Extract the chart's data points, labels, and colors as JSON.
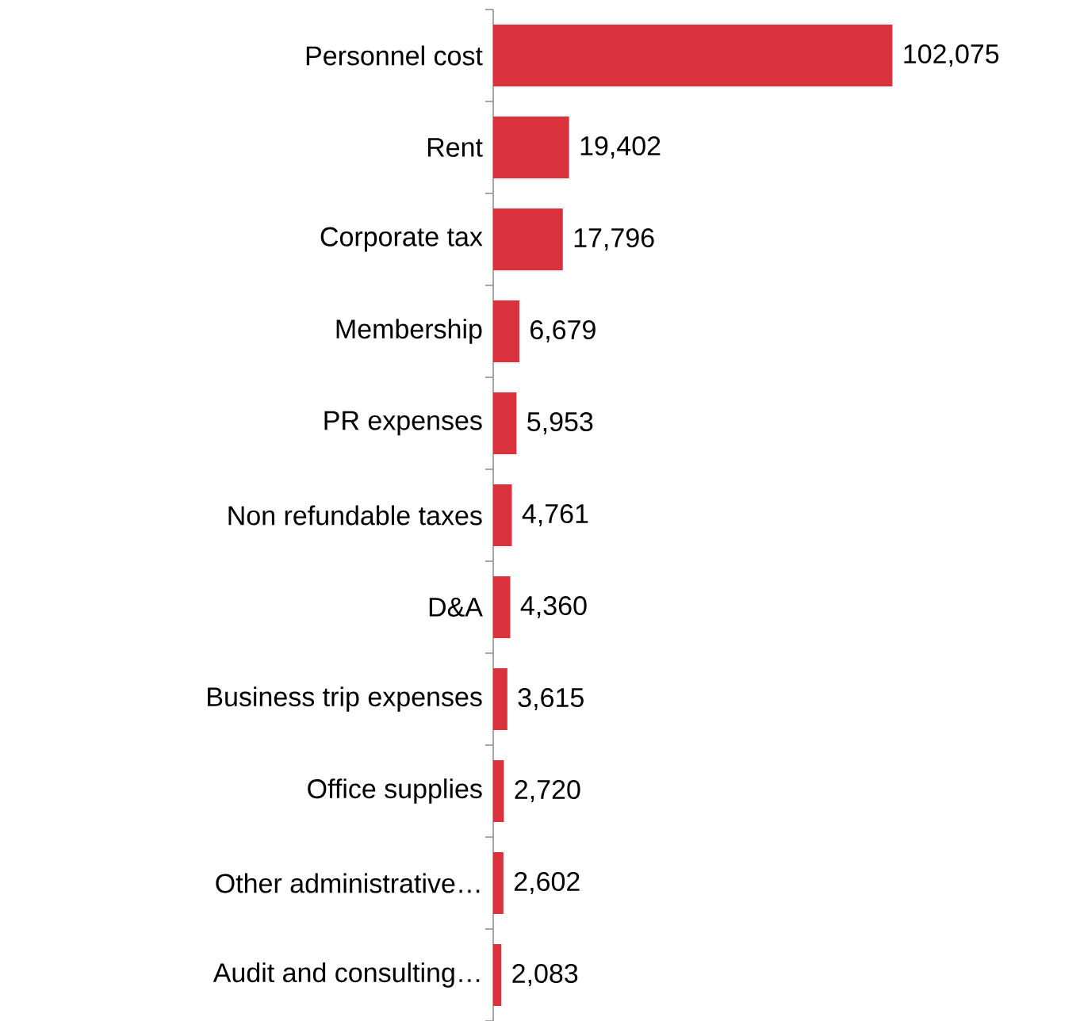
{
  "chart_data": {
    "type": "bar",
    "orientation": "horizontal",
    "color": "#d9323d",
    "value_labels": [
      "102,075",
      "19,402",
      "17,796",
      "6,679",
      "5,953",
      "4,761",
      "4,360",
      "3,615",
      "2,720",
      "2,602",
      "2,083"
    ],
    "categories": [
      "Personnel cost",
      "Rent",
      "Corporate tax",
      "Membership",
      "PR expenses",
      "Non refundable taxes",
      "D&A",
      "Business trip expenses",
      "Office supplies",
      "Other administrative…",
      "Audit and consulting…"
    ],
    "values": [
      102075,
      19402,
      17796,
      6679,
      5953,
      4761,
      4360,
      3615,
      2720,
      2602,
      2083
    ]
  }
}
